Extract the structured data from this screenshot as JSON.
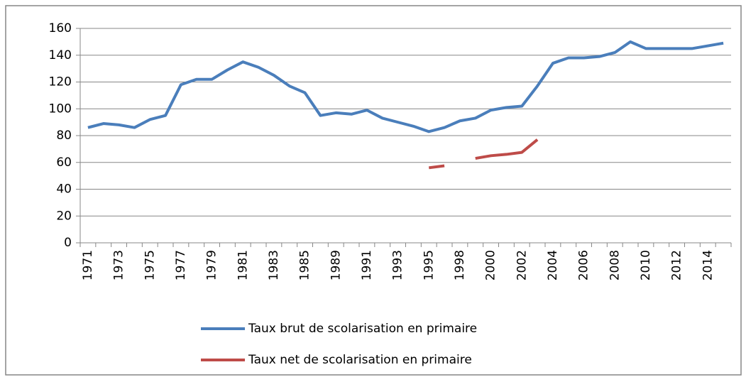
{
  "chart_data": {
    "type": "line",
    "categories": [
      "1971",
      null,
      "1973",
      null,
      "1975",
      null,
      "1977",
      null,
      "1979",
      null,
      "1981",
      null,
      "1983",
      null,
      "1985",
      null,
      "1989",
      null,
      "1991",
      null,
      "1993",
      null,
      "1995",
      null,
      "1998",
      null,
      "2000",
      null,
      "2002",
      null,
      "2004",
      null,
      "2006",
      null,
      "2008",
      null,
      "2010",
      null,
      "2012",
      null,
      "2014",
      null
    ],
    "series": [
      {
        "name": "Taux brut de scolarisation en primaire",
        "color": "#4a7ebb",
        "values": [
          86,
          89,
          88,
          86,
          92,
          95,
          118,
          122,
          122,
          129,
          135,
          131,
          125,
          117,
          112,
          95,
          97,
          96,
          99,
          93,
          90,
          87,
          83,
          86,
          91,
          93,
          99,
          101,
          102,
          117,
          134,
          138,
          138,
          139,
          142,
          150,
          145,
          145,
          145,
          145,
          147,
          149
        ]
      },
      {
        "name": "Taux net de scolarisation en primaire",
        "color": "#be4b48",
        "values": [
          null,
          null,
          null,
          null,
          null,
          null,
          null,
          null,
          null,
          null,
          null,
          null,
          null,
          null,
          null,
          null,
          null,
          null,
          null,
          null,
          null,
          null,
          56,
          57.5,
          null,
          63,
          65,
          66,
          67.5,
          77,
          null,
          null,
          null,
          null,
          null,
          null,
          null,
          null,
          null,
          null,
          null,
          null
        ]
      }
    ],
    "ylim": [
      0,
      160
    ],
    "yticks": [
      0,
      20,
      40,
      60,
      80,
      100,
      120,
      140,
      160
    ],
    "grid": true,
    "legend": "bottom"
  }
}
